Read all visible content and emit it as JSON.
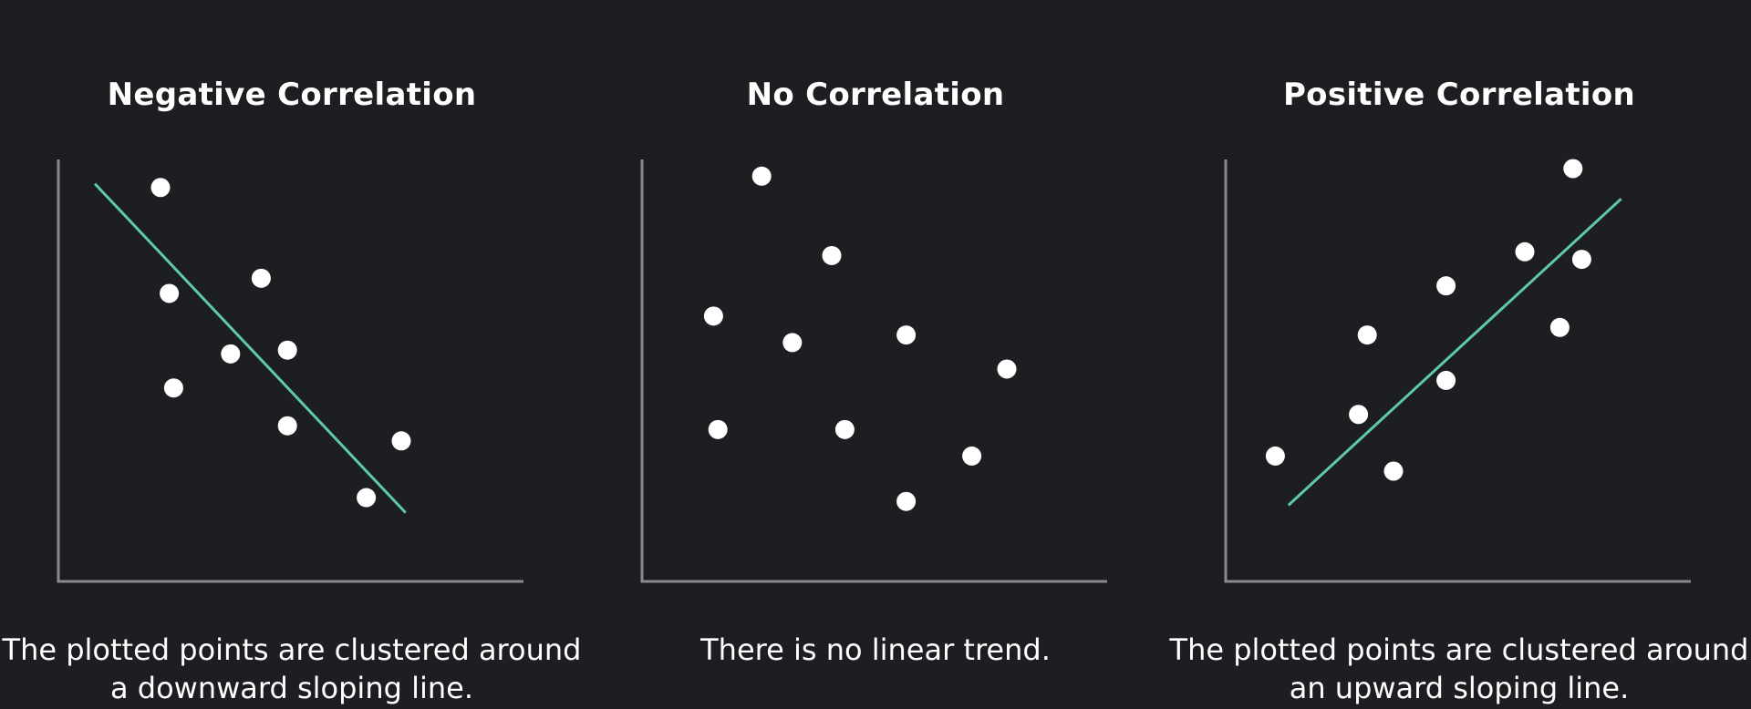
{
  "colors": {
    "background": "#1d1e21",
    "axis": "#8a8a8d",
    "point": "#ffffff",
    "trend_line": "#5fc9ae",
    "text": "#ffffff"
  },
  "chart_data": [
    {
      "type": "scatter",
      "title": "Negative Correlation",
      "caption": "The plotted points are clustered around a downward sloping line.",
      "xlabel": "",
      "ylabel": "",
      "xlim": [
        0,
        100
      ],
      "ylim": [
        0,
        100
      ],
      "grid": false,
      "points": [
        {
          "x": 20,
          "y": 95
        },
        {
          "x": 22,
          "y": 67
        },
        {
          "x": 23,
          "y": 42
        },
        {
          "x": 36,
          "y": 51
        },
        {
          "x": 43,
          "y": 71
        },
        {
          "x": 49,
          "y": 52
        },
        {
          "x": 49,
          "y": 32
        },
        {
          "x": 67,
          "y": 13
        },
        {
          "x": 75,
          "y": 28
        }
      ],
      "trend_line": [
        {
          "x": 5,
          "y": 96
        },
        {
          "x": 76,
          "y": 9
        }
      ]
    },
    {
      "type": "scatter",
      "title": "No Correlation",
      "caption": "There is no linear trend.",
      "xlabel": "",
      "ylabel": "",
      "xlim": [
        0,
        100
      ],
      "ylim": [
        0,
        100
      ],
      "grid": false,
      "points": [
        {
          "x": 24,
          "y": 98
        },
        {
          "x": 40,
          "y": 77
        },
        {
          "x": 13,
          "y": 61
        },
        {
          "x": 31,
          "y": 54
        },
        {
          "x": 57,
          "y": 56
        },
        {
          "x": 80,
          "y": 47
        },
        {
          "x": 14,
          "y": 31
        },
        {
          "x": 43,
          "y": 31
        },
        {
          "x": 72,
          "y": 24
        },
        {
          "x": 57,
          "y": 12
        }
      ]
    },
    {
      "type": "scatter",
      "title": "Positive Correlation",
      "caption": "The plotted points are clustered around an upward sloping line.",
      "xlabel": "",
      "ylabel": "",
      "xlim": [
        0,
        100
      ],
      "ylim": [
        0,
        100
      ],
      "grid": false,
      "points": [
        {
          "x": 8,
          "y": 24
        },
        {
          "x": 27,
          "y": 35
        },
        {
          "x": 35,
          "y": 20
        },
        {
          "x": 29,
          "y": 56
        },
        {
          "x": 47,
          "y": 69
        },
        {
          "x": 47,
          "y": 44
        },
        {
          "x": 65,
          "y": 78
        },
        {
          "x": 73,
          "y": 58
        },
        {
          "x": 78,
          "y": 76
        },
        {
          "x": 76,
          "y": 100
        }
      ],
      "trend_line": [
        {
          "x": 11,
          "y": 11
        },
        {
          "x": 87,
          "y": 92
        }
      ]
    }
  ]
}
